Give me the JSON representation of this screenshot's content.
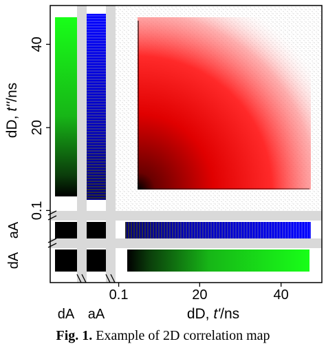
{
  "chart_data": {
    "type": "heatmap",
    "description_of_panels": "2D correlation map with marginal strips",
    "xlabel_prefix": "dD, ",
    "xlabel_italic": "t'",
    "xlabel_suffix": "/ns",
    "ylabel_prefix": "dD, ",
    "ylabel_italic": "t''",
    "ylabel_suffix": "/ns",
    "x_ticks": [
      "0.1",
      "20",
      "40"
    ],
    "y_ticks": [
      "0.1",
      "20",
      "40"
    ],
    "x_tick_values": [
      0.1,
      20,
      40
    ],
    "y_tick_values": [
      0.1,
      20,
      40
    ],
    "xlim": [
      0,
      48
    ],
    "ylim": [
      0,
      48
    ],
    "bottom_labels": [
      "dA",
      "aA"
    ],
    "left_labels": [
      "dA",
      "aA"
    ],
    "colors": {
      "density_high": "#000000",
      "density_mid": "#ff0000",
      "background_points": "#bdbdbd",
      "aA_strip": "#0000ff",
      "dA_strip": "#00ff00",
      "separator": "#d9d9d9"
    },
    "grid": false
  },
  "caption": {
    "label": "Fig. 1.",
    "text": " Example of 2D correlation map"
  }
}
